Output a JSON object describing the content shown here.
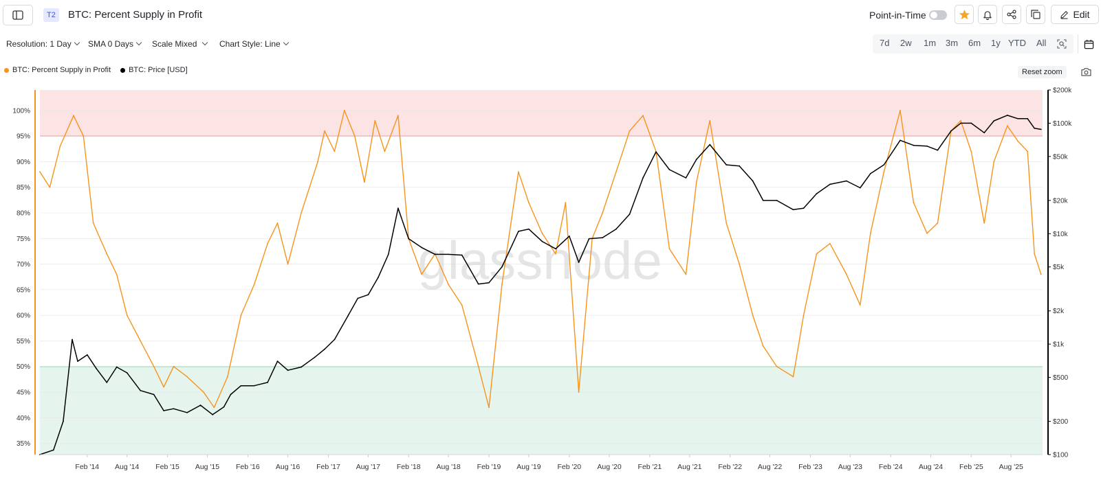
{
  "header": {
    "tag": "T2",
    "title": "BTC: Percent Supply in Profit",
    "point_in_time_label": "Point-in-Time",
    "edit_label": "Edit"
  },
  "controls": {
    "resolution": "Resolution: 1 Day",
    "sma": "SMA 0 Days",
    "scale": "Scale Mixed",
    "chart_style": "Chart Style: Line",
    "ranges": [
      "7d",
      "2w",
      "1m",
      "3m",
      "6m",
      "1y",
      "YTD",
      "All"
    ]
  },
  "legend": {
    "series": [
      {
        "name": "BTC: Percent Supply in Profit",
        "color": "#f7931a"
      },
      {
        "name": "BTC: Price [USD]",
        "color": "#000000"
      }
    ]
  },
  "reset_zoom": "Reset zoom",
  "watermark": "glassnode",
  "colors": {
    "accent": "#f7931a",
    "price": "#000000",
    "band_high": "#fde4e4",
    "band_low": "#e5f5ee",
    "line_high": "#ef8a8a",
    "line_low": "#7fcfa8",
    "star": "#f5a623"
  },
  "icons": [
    "sidebar-toggle-icon",
    "star-icon",
    "bell-icon",
    "share-icon",
    "copy-icon",
    "pencil-icon",
    "calendar-icon",
    "zoom-search-icon",
    "camera-icon"
  ],
  "chart_data": {
    "type": "line",
    "x_ticks": [
      "Feb '14",
      "Aug '14",
      "Feb '15",
      "Aug '15",
      "Feb '16",
      "Aug '16",
      "Feb '17",
      "Aug '17",
      "Feb '18",
      "Aug '18",
      "Feb '19",
      "Aug '19",
      "Feb '20",
      "Aug '20",
      "Feb '21",
      "Aug '21",
      "Feb '22",
      "Aug '22",
      "Feb '23",
      "Aug '23",
      "Feb '24",
      "Aug '24",
      "Feb '25",
      "Aug '25"
    ],
    "left_axis": {
      "ticks": [
        "100%",
        "95%",
        "90%",
        "85%",
        "80%",
        "75%",
        "70%",
        "65%",
        "60%",
        "55%",
        "50%",
        "45%",
        "40%",
        "35%"
      ],
      "ylim": [
        32.8,
        104
      ]
    },
    "right_axis": {
      "scale": "log",
      "ticks": [
        "$200k",
        "$100k",
        "$50k",
        "$20k",
        "$10k",
        "$5k",
        "$2k",
        "$1k",
        "$500",
        "$200",
        "$100"
      ],
      "tick_values": [
        200000,
        100000,
        50000,
        20000,
        10000,
        5000,
        2000,
        1000,
        500,
        200,
        100
      ],
      "ylim": [
        100,
        200000
      ]
    },
    "bands": [
      {
        "from": 95,
        "to": 104,
        "color": "#fde4e4",
        "line": 95
      },
      {
        "from": 32.8,
        "to": 50,
        "color": "#e5f5ee",
        "line": 50
      }
    ],
    "series": [
      {
        "name": "BTC: Percent Supply in Profit",
        "axis": "left",
        "color": "#f7931a",
        "x": [
          "2013-07-01",
          "2013-08-15",
          "2013-10-01",
          "2013-12-01",
          "2014-01-15",
          "2014-03-01",
          "2014-05-01",
          "2014-06-15",
          "2014-08-01",
          "2014-10-01",
          "2014-12-01",
          "2015-01-15",
          "2015-03-01",
          "2015-05-01",
          "2015-07-15",
          "2015-09-01",
          "2015-11-01",
          "2016-01-01",
          "2016-03-01",
          "2016-05-01",
          "2016-06-15",
          "2016-08-01",
          "2016-10-01",
          "2016-12-15",
          "2017-01-15",
          "2017-03-01",
          "2017-04-15",
          "2017-06-01",
          "2017-07-15",
          "2017-09-01",
          "2017-10-15",
          "2017-12-15",
          "2018-02-01",
          "2018-04-01",
          "2018-06-01",
          "2018-08-01",
          "2018-10-01",
          "2018-12-15",
          "2019-02-01",
          "2019-04-01",
          "2019-06-15",
          "2019-08-01",
          "2019-10-01",
          "2019-12-01",
          "2020-01-15",
          "2020-03-15",
          "2020-05-15",
          "2020-07-01",
          "2020-09-01",
          "2020-11-01",
          "2021-01-01",
          "2021-03-01",
          "2021-05-01",
          "2021-07-15",
          "2021-09-01",
          "2021-11-01",
          "2022-01-15",
          "2022-03-15",
          "2022-05-15",
          "2022-07-01",
          "2022-09-01",
          "2022-11-15",
          "2023-01-01",
          "2023-03-01",
          "2023-05-01",
          "2023-07-15",
          "2023-09-15",
          "2023-11-01",
          "2024-01-01",
          "2024-03-15",
          "2024-05-15",
          "2024-07-15",
          "2024-09-01",
          "2024-11-01",
          "2024-12-15",
          "2025-02-01",
          "2025-04-01",
          "2025-05-15",
          "2025-07-15",
          "2025-09-01",
          "2025-10-15",
          "2025-11-15",
          "2025-12-15"
        ],
        "values": [
          88,
          85,
          93,
          99,
          95,
          78,
          72,
          68,
          60,
          55,
          50,
          46,
          50,
          48,
          45,
          42,
          48,
          60,
          66,
          74,
          78,
          70,
          80,
          90,
          96,
          92,
          100,
          95,
          86,
          98,
          92,
          99,
          75,
          68,
          72,
          66,
          62,
          50,
          42,
          66,
          88,
          82,
          76,
          72,
          82,
          45,
          75,
          80,
          88,
          96,
          99,
          92,
          73,
          68,
          86,
          98,
          78,
          70,
          60,
          54,
          50,
          48,
          60,
          72,
          74,
          68,
          62,
          76,
          88,
          100,
          82,
          76,
          78,
          96,
          98,
          92,
          78,
          90,
          97,
          94,
          92,
          72,
          68
        ]
      },
      {
        "name": "BTC: Price [USD]",
        "axis": "right",
        "color": "#000000",
        "x": [
          "2013-07-01",
          "2013-09-01",
          "2013-10-15",
          "2013-11-25",
          "2013-12-20",
          "2014-02-01",
          "2014-03-15",
          "2014-05-01",
          "2014-06-15",
          "2014-08-01",
          "2014-10-01",
          "2014-12-01",
          "2015-01-15",
          "2015-03-01",
          "2015-05-01",
          "2015-07-01",
          "2015-08-25",
          "2015-10-15",
          "2015-11-15",
          "2016-01-01",
          "2016-03-01",
          "2016-05-01",
          "2016-06-15",
          "2016-08-01",
          "2016-10-01",
          "2016-12-01",
          "2017-01-15",
          "2017-03-01",
          "2017-05-01",
          "2017-06-15",
          "2017-08-01",
          "2017-09-15",
          "2017-11-01",
          "2017-12-15",
          "2018-02-01",
          "2018-04-01",
          "2018-06-01",
          "2018-08-01",
          "2018-10-01",
          "2018-12-15",
          "2019-02-01",
          "2019-04-01",
          "2019-06-15",
          "2019-08-01",
          "2019-10-01",
          "2019-12-01",
          "2020-02-01",
          "2020-03-15",
          "2020-05-01",
          "2020-07-01",
          "2020-09-01",
          "2020-11-01",
          "2021-01-01",
          "2021-03-01",
          "2021-05-01",
          "2021-07-15",
          "2021-09-01",
          "2021-11-01",
          "2022-01-15",
          "2022-03-15",
          "2022-05-15",
          "2022-07-01",
          "2022-09-01",
          "2022-11-15",
          "2023-01-01",
          "2023-03-01",
          "2023-05-01",
          "2023-07-15",
          "2023-09-15",
          "2023-11-01",
          "2024-01-01",
          "2024-03-15",
          "2024-05-15",
          "2024-07-15",
          "2024-09-01",
          "2024-11-01",
          "2024-12-15",
          "2025-02-01",
          "2025-04-01",
          "2025-05-15",
          "2025-07-15",
          "2025-09-01",
          "2025-10-15",
          "2025-11-15",
          "2025-12-15"
        ],
        "values": [
          100,
          110,
          200,
          1100,
          700,
          800,
          600,
          450,
          620,
          550,
          380,
          350,
          250,
          260,
          240,
          280,
          230,
          270,
          350,
          420,
          420,
          450,
          700,
          580,
          620,
          760,
          900,
          1100,
          1800,
          2600,
          2800,
          4000,
          6500,
          17000,
          9000,
          7500,
          6500,
          6500,
          6400,
          3500,
          3600,
          5000,
          10500,
          11000,
          8500,
          7300,
          9500,
          5500,
          9000,
          9200,
          11000,
          15000,
          32000,
          55000,
          38000,
          32000,
          47000,
          64000,
          42000,
          41000,
          30000,
          20000,
          20000,
          16500,
          17000,
          23000,
          28000,
          30000,
          26000,
          35000,
          42000,
          70000,
          63000,
          62000,
          57000,
          85000,
          100000,
          100000,
          82000,
          105000,
          118000,
          110000,
          110000,
          90000,
          88000
        ]
      }
    ]
  }
}
